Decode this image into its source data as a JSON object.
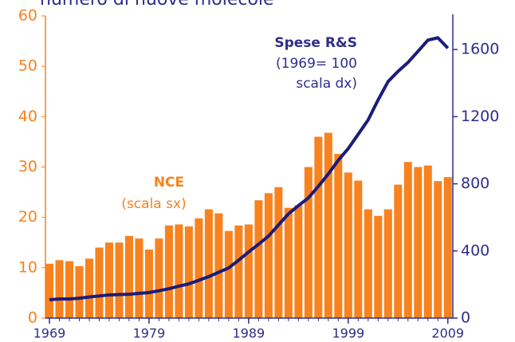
{
  "chart_data": {
    "type": "bar_line",
    "title": "numero di nuove molecole",
    "x": [
      1969,
      1970,
      1971,
      1972,
      1973,
      1974,
      1975,
      1976,
      1977,
      1978,
      1979,
      1980,
      1981,
      1982,
      1983,
      1984,
      1985,
      1986,
      1987,
      1988,
      1989,
      1990,
      1991,
      1992,
      1993,
      1994,
      1995,
      1996,
      1997,
      1998,
      1999,
      2000,
      2001,
      2002,
      2003,
      2004,
      2005,
      2006,
      2007,
      2008,
      2009
    ],
    "xlim": [
      1968.6,
      2009.5
    ],
    "xticks": [
      1969,
      1979,
      1989,
      1999,
      2009
    ],
    "ylim": [
      0,
      60
    ],
    "yticks": [
      0,
      10,
      20,
      30,
      40,
      50,
      60
    ],
    "y2lim": [
      0,
      1800
    ],
    "y2ticks": [
      0,
      400,
      800,
      1200,
      1600
    ],
    "series": [
      {
        "name": "NCE",
        "note": "(scala sx)",
        "type": "bar",
        "color": "#f7821e",
        "values": [
          10.8,
          11.5,
          11.3,
          10.3,
          11.8,
          14,
          15,
          15,
          16.3,
          15.8,
          13.6,
          15.8,
          18.4,
          18.6,
          18.2,
          19.8,
          21.6,
          20.8,
          17.3,
          18.4,
          18.6,
          23.4,
          24.8,
          26,
          21.9,
          22.4,
          30,
          36,
          36.8,
          32.6,
          28.9,
          27.3,
          21.6,
          20.3,
          21.6,
          26.5,
          31,
          30,
          30.3,
          27.2,
          28
        ]
      },
      {
        "name": "Spese R&S",
        "note": [
          "(1969= 100",
          "scala dx)"
        ],
        "type": "line",
        "axis": "y2",
        "color": "#1c1c7a",
        "values": [
          109,
          114,
          114,
          118,
          126,
          132,
          138,
          140,
          142,
          147,
          152,
          163,
          175,
          190,
          204,
          225,
          247,
          273,
          299,
          345,
          394,
          440,
          489,
          555,
          621,
          670,
          716,
          785,
          859,
          940,
          1010,
          1095,
          1181,
          1300,
          1409,
          1470,
          1523,
          1589,
          1656,
          1670,
          1608
        ]
      }
    ]
  }
}
